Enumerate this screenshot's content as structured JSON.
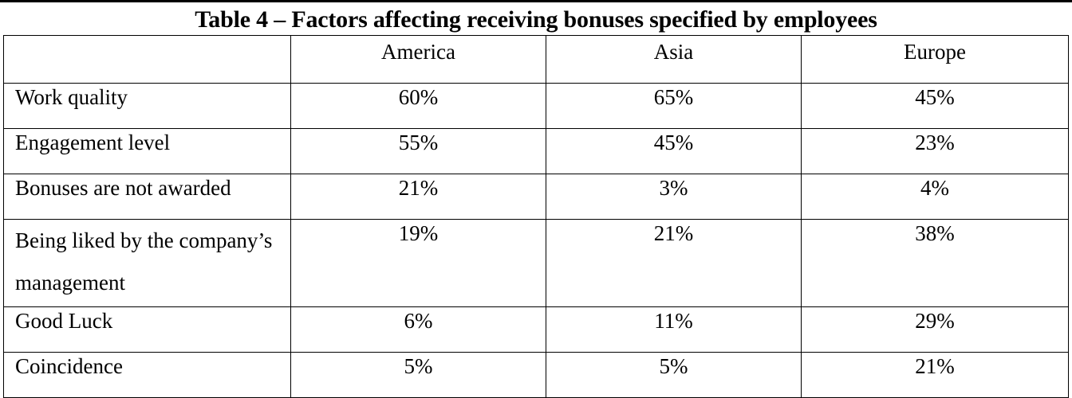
{
  "caption": "Table 4 – Factors affecting receiving bonuses specified by employees",
  "columns": [
    "",
    "America",
    "Asia",
    "Europe"
  ],
  "rows": [
    {
      "label": "Work quality",
      "values": [
        "60%",
        "65%",
        "45%"
      ]
    },
    {
      "label": "Engagement level",
      "values": [
        "55%",
        "45%",
        "23%"
      ]
    },
    {
      "label": "Bonuses are not awarded",
      "values": [
        "21%",
        "3%",
        "4%"
      ]
    },
    {
      "label": "Being liked by the company’s management",
      "values": [
        "19%",
        "21%",
        "38%"
      ]
    },
    {
      "label": "Good Luck",
      "values": [
        "6%",
        "11%",
        "29%"
      ]
    },
    {
      "label": "Coincidence",
      "values": [
        "5%",
        "5%",
        "21%"
      ]
    }
  ]
}
